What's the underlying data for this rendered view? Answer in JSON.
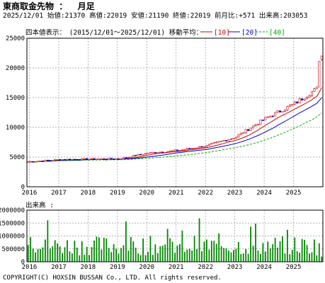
{
  "header": {
    "title": "東商取金先物 ：  月足",
    "info": "2025/12/01 始値:21370 高値:22019 安値:21190 終値:22019 前月比:+571 出来高:203053"
  },
  "legend": {
    "range": "四本値表示：　(2015/12/01～2025/12/01) 移動平均：",
    "ma10": "[10]",
    "ma20": "[20]",
    "ma40": "[40]"
  },
  "volume_label": "出来高 :",
  "copyright": "COPYRIGHT(C) HOXSIN BUSSAN Co., LTD. All rights reserved.",
  "colors": {
    "up": "#cc0000",
    "down": "#0000aa",
    "ma10": "#cc0000",
    "ma20": "#0000cc",
    "ma40": "#00aa00",
    "volume": "#008800",
    "grid": "#999999"
  },
  "chart_data": [
    {
      "type": "candlestick",
      "title": "東商取金先物 ： 月足",
      "x_ticks": [
        "2016",
        "2017",
        "2018",
        "2019",
        "2020",
        "2021",
        "2022",
        "2023",
        "2024",
        "2025"
      ],
      "y_ticks": [
        0,
        5000,
        10000,
        15000,
        20000,
        25000
      ],
      "ylim": [
        0,
        25000
      ],
      "months": 121,
      "start": "2015/12/01",
      "end": "2025/12/01",
      "close_by_year_start": {
        "2016": 4230,
        "2017": 4600,
        "2018": 4650,
        "2019": 4700,
        "2020": 5700,
        "2021": 6100,
        "2022": 6900,
        "2023": 8400,
        "2024": 11500,
        "2025": 14000,
        "2025-06": 15700,
        "2025-09": 16500,
        "2025-11": 21450,
        "2025-12": 22019
      },
      "last_bar": {
        "open": 21370,
        "high": 22019,
        "low": 21190,
        "close": 22019
      },
      "series": [
        {
          "name": "[10]"
        },
        {
          "name": "[20]"
        },
        {
          "name": "[40]"
        }
      ]
    },
    {
      "type": "bar",
      "title": "出来高",
      "y_ticks": [
        0,
        500000,
        1000000,
        1500000,
        2000000
      ],
      "ylim": [
        0,
        2000000
      ],
      "last_value": 203053
    }
  ]
}
